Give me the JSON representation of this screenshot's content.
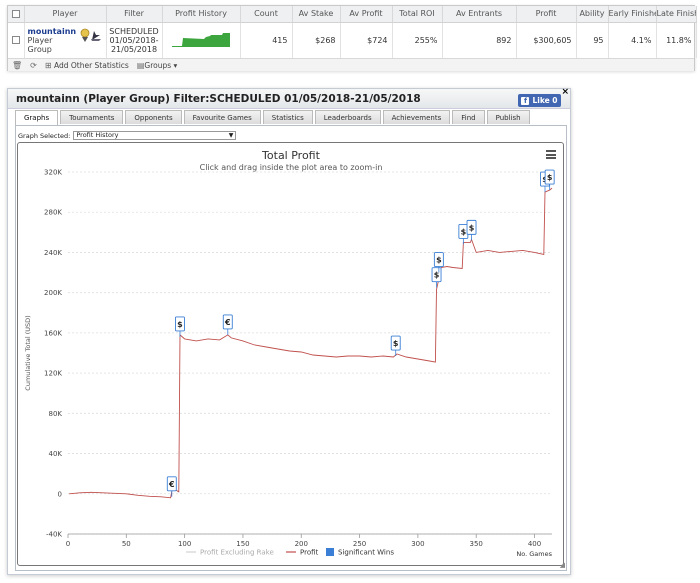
{
  "stats": {
    "headers": [
      "Player",
      "Filter",
      "Profit History",
      "Count",
      "Av Stake",
      "Av Profit",
      "Total ROI",
      "Av Entrants",
      "Profit",
      "Ability",
      "Early Finishes (",
      "Late Finishes ("
    ],
    "row": {
      "player_name": "mountainn",
      "player_group": "Player Group",
      "filter_line1": "SCHEDULED",
      "filter_line2": "01/05/2018-",
      "filter_line3": "21/05/2018",
      "count": "415",
      "av_stake": "$268",
      "av_profit": "$724",
      "total_roi": "255%",
      "av_entrants": "892",
      "profit": "$300,605",
      "ability": "95",
      "early_finishes": "4.1%",
      "late_finishes": "11.8%"
    },
    "footer": {
      "add_stats": "Add Other Statistics",
      "groups": "Groups"
    }
  },
  "panel": {
    "title": "mountainn (Player Group) Filter:SCHEDULED 01/05/2018-21/05/2018",
    "like_label": "Like 0",
    "close": "×",
    "tabs": [
      "Graphs",
      "Tournaments",
      "Opponents",
      "Favourite Games",
      "Statistics",
      "Leaderboards",
      "Achievements",
      "Find",
      "Publish"
    ],
    "active_tab": "Graphs",
    "graph_selected_label": "Graph Selected:",
    "graph_selected_value": "Profit History"
  },
  "colors": {
    "profit": "#c0504d",
    "profit_ex_rake": "#d3d3d3",
    "significant": "#3a7fd5",
    "sparkline": "#3da53d"
  },
  "chart_data": {
    "type": "line",
    "title": "Total Profit",
    "subtitle": "Click and drag inside the plot area to zoom-in",
    "ylabel": "Cumulative Total (USD)",
    "xlabel": "No. Games",
    "xlim": [
      0,
      415
    ],
    "ylim": [
      -40000,
      320000
    ],
    "xticks": [
      0,
      50,
      100,
      150,
      200,
      250,
      300,
      350,
      400
    ],
    "yticks": [
      -40000,
      0,
      40000,
      80000,
      120000,
      160000,
      200000,
      240000,
      280000,
      320000
    ],
    "ytick_labels": [
      "-40K",
      "0",
      "40K",
      "80K",
      "120K",
      "160K",
      "200K",
      "240K",
      "280K",
      "320K"
    ],
    "legend": [
      "Profit Excluding Rake",
      "Profit",
      "Significant Wins"
    ],
    "series": [
      {
        "name": "Profit",
        "points": [
          [
            1,
            0
          ],
          [
            10,
            1000
          ],
          [
            20,
            1500
          ],
          [
            30,
            1000
          ],
          [
            40,
            500
          ],
          [
            50,
            0
          ],
          [
            60,
            -1500
          ],
          [
            70,
            -2500
          ],
          [
            80,
            -3000
          ],
          [
            88,
            -4000
          ],
          [
            90,
            9000
          ],
          [
            92,
            4000
          ],
          [
            95,
            2000
          ],
          [
            96,
            158000
          ],
          [
            100,
            154000
          ],
          [
            110,
            152000
          ],
          [
            120,
            154000
          ],
          [
            130,
            153000
          ],
          [
            137,
            158000
          ],
          [
            140,
            155000
          ],
          [
            150,
            152000
          ],
          [
            160,
            148000
          ],
          [
            170,
            146000
          ],
          [
            180,
            144000
          ],
          [
            190,
            142000
          ],
          [
            200,
            141000
          ],
          [
            210,
            138000
          ],
          [
            220,
            137000
          ],
          [
            230,
            136000
          ],
          [
            240,
            137000
          ],
          [
            250,
            137000
          ],
          [
            260,
            136000
          ],
          [
            270,
            137000
          ],
          [
            279,
            136000
          ],
          [
            282,
            139000
          ],
          [
            290,
            136000
          ],
          [
            300,
            134000
          ],
          [
            310,
            132000
          ],
          [
            315,
            131000
          ],
          [
            316,
            203000
          ],
          [
            318,
            214000
          ],
          [
            320,
            225000
          ],
          [
            325,
            226000
          ],
          [
            330,
            225000
          ],
          [
            338,
            224000
          ],
          [
            339,
            250000
          ],
          [
            345,
            250000
          ],
          [
            346,
            253000
          ],
          [
            350,
            240000
          ],
          [
            360,
            242000
          ],
          [
            370,
            240000
          ],
          [
            380,
            241000
          ],
          [
            390,
            242000
          ],
          [
            400,
            240000
          ],
          [
            408,
            238000
          ],
          [
            409,
            300000
          ],
          [
            413,
            302000
          ],
          [
            415,
            304000
          ]
        ]
      }
    ],
    "significant_wins": [
      {
        "x": 89,
        "y": -3000,
        "label": "€"
      },
      {
        "x": 96,
        "y": 156000,
        "label": "$"
      },
      {
        "x": 137,
        "y": 158000,
        "label": "€"
      },
      {
        "x": 281,
        "y": 137000,
        "label": "$"
      },
      {
        "x": 316,
        "y": 205000,
        "label": "$"
      },
      {
        "x": 318,
        "y": 220000,
        "label": "$"
      },
      {
        "x": 339,
        "y": 248000,
        "label": "$"
      },
      {
        "x": 346,
        "y": 252000,
        "label": "$"
      },
      {
        "x": 409,
        "y": 300000,
        "label": "$"
      },
      {
        "x": 413,
        "y": 302000,
        "label": "$"
      }
    ]
  }
}
